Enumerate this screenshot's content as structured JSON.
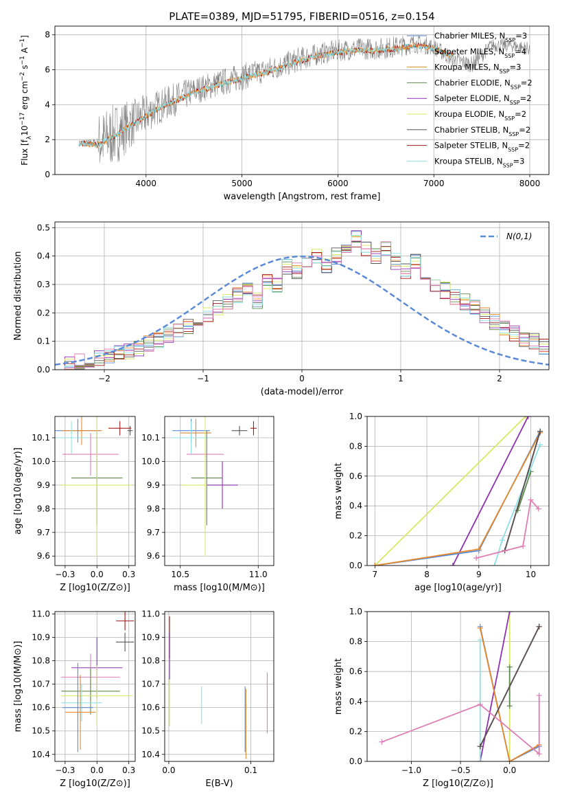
{
  "figure_title": "PLATE=0389, MJD=51795, FIBERID=0516, z=0.154",
  "colors": {
    "Chabrier MILES": "#5a8ad6",
    "Salpeter MILES": "#d9d9d9",
    "Kroupa MILES": "#e6892b",
    "Chabrier ELODIE": "#5e8a4c",
    "Salpeter ELODIE": "#8e2fb0",
    "Kroupa ELODIE": "#d8e860",
    "Chabrier STELIB": "#555555",
    "Salpeter STELIB": "#a01818",
    "Kroupa STELIB": "#8fe0e8",
    "pink": "#e07cb4",
    "data": "#808080",
    "normal_fit": "#5a8ad6"
  },
  "chart_data": [
    {
      "id": "spectrum",
      "type": "line",
      "xlabel": "wavelength [Angstrom, rest frame]",
      "ylabel_parts": [
        "Flux [f",
        "λ",
        "10",
        "−17",
        " erg cm",
        "−2",
        " s",
        "−1",
        " A",
        "−1",
        "]"
      ],
      "xlim": [
        3050,
        8200
      ],
      "ylim": [
        0,
        8.5
      ],
      "xticks": [
        4000,
        5000,
        6000,
        7000,
        8000
      ],
      "yticks": [
        0,
        2,
        4,
        6,
        8
      ],
      "legend_position": "top-right",
      "legend": [
        {
          "label": "Chabrier MILES, N",
          "sub": "SSP",
          "tail": "=3"
        },
        {
          "label": "Salpeter MILES, N",
          "sub": "SSP",
          "tail": "=4"
        },
        {
          "label": "Kroupa MILES, N",
          "sub": "SSP",
          "tail": "=3"
        },
        {
          "label": "Chabrier ELODIE, N",
          "sub": "SSP",
          "tail": "=2"
        },
        {
          "label": "Salpeter ELODIE, N",
          "sub": "SSP",
          "tail": "=2"
        },
        {
          "label": "Kroupa ELODIE, N",
          "sub": "SSP",
          "tail": "=2"
        },
        {
          "label": "Chabrier STELIB, N",
          "sub": "SSP",
          "tail": "=2"
        },
        {
          "label": "Salpeter STELIB, N",
          "sub": "SSP",
          "tail": "=2"
        },
        {
          "label": "Kroupa STELIB, N",
          "sub": "SSP",
          "tail": "=3"
        }
      ],
      "data_series": {
        "x": [
          3300,
          3500,
          3700,
          3900,
          4100,
          4300,
          4500,
          4800,
          5000,
          5200,
          5400,
          5600,
          5800,
          6000,
          6200,
          6400,
          6600,
          6800,
          7000,
          7200,
          7400,
          7600,
          7800,
          8000
        ],
        "y": [
          1.9,
          1.8,
          2.4,
          3.1,
          3.8,
          4.3,
          4.8,
          5.3,
          5.6,
          5.9,
          6.2,
          6.6,
          6.9,
          7.1,
          7.2,
          7.2,
          7.3,
          7.5,
          7.3,
          6.6,
          6.3,
          7.4,
          7.4,
          7.2
        ],
        "noise": [
          0,
          2.2,
          2.2,
          1.6,
          1.3,
          1.2,
          1.0,
          1.0,
          1.0,
          0.9,
          0.9,
          0.9,
          0.8,
          0.8,
          0.8,
          0.8,
          0.8,
          0.7,
          0.6,
          0.6,
          0.6,
          0.5,
          0.5,
          0.5
        ]
      },
      "model_series": {
        "x": [
          3300,
          3500,
          3700,
          3900,
          4100,
          4300,
          4500,
          4800,
          5000,
          5200,
          5400,
          5600,
          5800,
          6000,
          6200,
          6400,
          6600,
          6800,
          7000,
          7200
        ],
        "y": [
          1.8,
          1.7,
          2.3,
          3.0,
          3.7,
          4.2,
          4.7,
          5.2,
          5.5,
          5.8,
          6.1,
          6.5,
          6.8,
          7.0,
          7.1,
          7.1,
          7.2,
          7.4,
          7.2,
          6.8
        ]
      }
    },
    {
      "id": "residuals",
      "type": "histogram",
      "xlabel": "(data-model)/error",
      "ylabel": "Normed distribution",
      "xlim": [
        -2.5,
        2.5
      ],
      "ylim": [
        0,
        0.52
      ],
      "xticks": [
        -2,
        -1,
        0,
        1,
        2
      ],
      "yticks": [
        0.0,
        0.1,
        0.2,
        0.3,
        0.4,
        0.5
      ],
      "legend_position": "top-right",
      "normal_label": "N(0,1)",
      "bin_width": 0.1,
      "reference_series": [
        0.018,
        0.022,
        0.027,
        0.033,
        0.04,
        0.047,
        0.056,
        0.066,
        0.078,
        0.09,
        0.104,
        0.119,
        0.136,
        0.154,
        0.172,
        0.194,
        0.216,
        0.24,
        0.264,
        0.29,
        0.242,
        0.315,
        0.3,
        0.36,
        0.35,
        0.38,
        0.4,
        0.37,
        0.4,
        0.42,
        0.46,
        0.42,
        0.4,
        0.43,
        0.38,
        0.35,
        0.38,
        0.33,
        0.3,
        0.28,
        0.255,
        0.24,
        0.215,
        0.19,
        0.17,
        0.15,
        0.13,
        0.11,
        0.098,
        0.08
      ]
    },
    {
      "id": "age-vs-Z",
      "type": "scatter",
      "xlabel": "Z [log10(Z/Z⊙)]",
      "ylabel": "age  [log10(age/yr)]",
      "xlim": [
        -0.33,
        0.3
      ],
      "ylim": [
        9.56,
        10.19
      ],
      "xticks": [
        -0.25,
        0.0,
        0.25
      ],
      "yticks": [
        9.6,
        9.7,
        9.8,
        9.9,
        10.0,
        10.1
      ],
      "points": [
        {
          "c": "Chabrier MILES",
          "x": -0.15,
          "y": 10.13,
          "xerr": 0.18,
          "yerr": 0.05
        },
        {
          "c": "Kroupa MILES",
          "x": -0.12,
          "y": 10.13,
          "xerr": 0.16,
          "yerr": 0.06
        },
        {
          "c": "Kroupa STELIB",
          "x": -0.2,
          "y": 10.1,
          "xerr": 0.12,
          "yerr": 0.07
        },
        {
          "c": "pink",
          "x": -0.05,
          "y": 10.03,
          "xerr": 0.22,
          "yerr": 0.09
        },
        {
          "c": "Chabrier ELODIE",
          "x": 0.0,
          "y": 9.93,
          "xerr": 0.2,
          "yerr": 0.2
        },
        {
          "c": "Kroupa ELODIE",
          "x": 0.0,
          "y": 9.9,
          "xerr": 0.28,
          "yerr": 0.3
        },
        {
          "c": "Salpeter STELIB",
          "x": 0.18,
          "y": 10.14,
          "xerr": 0.09,
          "yerr": 0.03
        },
        {
          "c": "Chabrier STELIB",
          "x": 0.26,
          "y": 10.13,
          "xerr": 0.02,
          "yerr": 0.02
        }
      ]
    },
    {
      "id": "age-vs-mass",
      "type": "scatter",
      "xlabel": "mass [log10(M/M⊙)]",
      "ylabel": "",
      "xlim": [
        10.4,
        11.1
      ],
      "ylim": [
        9.56,
        10.19
      ],
      "xticks": [
        10.5,
        11.0
      ],
      "yticks": [
        9.6,
        9.7,
        9.8,
        9.9,
        10.0,
        10.1
      ],
      "points": [
        {
          "c": "Chabrier MILES",
          "x": 10.57,
          "y": 10.13,
          "xerr": 0.12,
          "yerr": 0.05
        },
        {
          "c": "Kroupa MILES",
          "x": 10.6,
          "y": 10.12,
          "xerr": 0.1,
          "yerr": 0.06
        },
        {
          "c": "Kroupa STELIB",
          "x": 10.57,
          "y": 10.1,
          "xerr": 0.12,
          "yerr": 0.07
        },
        {
          "c": "pink",
          "x": 10.66,
          "y": 10.03,
          "xerr": 0.12,
          "yerr": 0.09
        },
        {
          "c": "Chabrier ELODIE",
          "x": 10.67,
          "y": 9.93,
          "xerr": 0.1,
          "yerr": 0.2
        },
        {
          "c": "Kroupa ELODIE",
          "x": 10.66,
          "y": 9.9,
          "xerr": 0.15,
          "yerr": 0.3
        },
        {
          "c": "Salpeter ELODIE",
          "x": 10.77,
          "y": 9.9,
          "xerr": 0.1,
          "yerr": 0.1
        },
        {
          "c": "Salpeter STELIB",
          "x": 10.97,
          "y": 10.14,
          "xerr": 0.02,
          "yerr": 0.03
        },
        {
          "c": "Chabrier STELIB",
          "x": 10.88,
          "y": 10.13,
          "xerr": 0.05,
          "yerr": 0.02
        }
      ]
    },
    {
      "id": "weight-vs-age",
      "type": "line",
      "xlabel": "age  [log10(age/yr)]",
      "ylabel": "mass weight",
      "xlim": [
        6.85,
        10.35
      ],
      "ylim": [
        0,
        1
      ],
      "xticks": [
        7,
        8,
        9,
        10
      ],
      "yticks": [
        0.0,
        0.2,
        0.4,
        0.6,
        0.8,
        1.0
      ],
      "series": [
        {
          "c": "Kroupa ELODIE",
          "x": [
            7.0,
            9.9
          ],
          "y": [
            0.0,
            1.0
          ]
        },
        {
          "c": "Salpeter ELODIE",
          "x": [
            8.5,
            9.95
          ],
          "y": [
            0.0,
            1.0
          ]
        },
        {
          "c": "Chabrier MILES",
          "x": [
            7.0,
            9.0,
            10.18
          ],
          "y": [
            0.0,
            0.1,
            0.9
          ]
        },
        {
          "c": "Kroupa MILES",
          "x": [
            7.0,
            9.0,
            10.18
          ],
          "y": [
            0.0,
            0.11,
            0.89
          ]
        },
        {
          "c": "Chabrier ELODIE",
          "x": [
            9.75,
            10.0
          ],
          "y": [
            0.37,
            0.63
          ]
        },
        {
          "c": "Kroupa STELIB",
          "x": [
            9.3,
            9.45,
            10.18
          ],
          "y": [
            0.0,
            0.17,
            0.81
          ]
        },
        {
          "c": "Salpeter STELIB",
          "x": [
            9.5,
            10.18
          ],
          "y": [
            0.1,
            0.9
          ]
        },
        {
          "c": "Chabrier STELIB",
          "x": [
            9.5,
            10.18
          ],
          "y": [
            0.1,
            0.9
          ]
        },
        {
          "c": "pink",
          "x": [
            8.95,
            9.85,
            10.0,
            10.15
          ],
          "y": [
            0.05,
            0.13,
            0.44,
            0.38
          ]
        }
      ]
    },
    {
      "id": "mass-vs-Z",
      "type": "scatter",
      "xlabel": "Z [log10(Z/Z⊙)]",
      "ylabel": "mass [log10(M/M⊙)]",
      "xlim": [
        -0.33,
        0.3
      ],
      "ylim": [
        10.37,
        11.01
      ],
      "xticks": [
        -0.25,
        0.0,
        0.25
      ],
      "yticks": [
        10.4,
        10.5,
        10.6,
        10.7,
        10.8,
        10.9,
        11.0
      ],
      "points": [
        {
          "c": "Salpeter STELIB",
          "x": 0.22,
          "y": 10.97,
          "xerr": 0.07,
          "yerr": 0.04
        },
        {
          "c": "Chabrier STELIB",
          "x": 0.22,
          "y": 10.88,
          "xerr": 0.07,
          "yerr": 0.04
        },
        {
          "c": "Salpeter ELODIE",
          "x": 0.0,
          "y": 10.77,
          "xerr": 0.2,
          "yerr": 0.13
        },
        {
          "c": "pink",
          "x": -0.05,
          "y": 10.73,
          "xerr": 0.23,
          "yerr": 0.1
        },
        {
          "c": "Chabrier ELODIE",
          "x": -0.05,
          "y": 10.67,
          "xerr": 0.23,
          "yerr": 0.1
        },
        {
          "c": "Kroupa ELODIE",
          "x": 0.0,
          "y": 10.65,
          "xerr": 0.28,
          "yerr": 0.13
        },
        {
          "c": "Kroupa STELIB",
          "x": -0.12,
          "y": 10.62,
          "xerr": 0.16,
          "yerr": 0.08
        },
        {
          "c": "Chabrier MILES",
          "x": -0.15,
          "y": 10.6,
          "xerr": 0.12,
          "yerr": 0.19
        },
        {
          "c": "Kroupa MILES",
          "x": -0.13,
          "y": 10.58,
          "xerr": 0.12,
          "yerr": 0.16
        }
      ]
    },
    {
      "id": "mass-vs-EBV",
      "type": "scatter",
      "xlabel": "E(B-V)",
      "ylabel": "",
      "xlim": [
        -0.005,
        0.128
      ],
      "ylim": [
        10.37,
        11.01
      ],
      "xticks": [
        0.0,
        0.1
      ],
      "yticks": [
        10.4,
        10.5,
        10.6,
        10.7,
        10.8,
        10.9,
        11.0
      ],
      "points": [
        {
          "c": "Salpeter STELIB",
          "x": 0.001,
          "y": 10.9,
          "xerr": 0,
          "yerr": 0.09
        },
        {
          "c": "Salpeter ELODIE",
          "x": 0.001,
          "y": 10.82,
          "xerr": 0,
          "yerr": 0.1
        },
        {
          "c": "Kroupa ELODIE",
          "x": 0.001,
          "y": 10.62,
          "xerr": 0,
          "yerr": 0.1
        },
        {
          "c": "Kroupa STELIB",
          "x": 0.04,
          "y": 10.61,
          "xerr": 0,
          "yerr": 0.08
        },
        {
          "c": "Chabrier MILES",
          "x": 0.093,
          "y": 10.55,
          "xerr": 0,
          "yerr": 0.14
        },
        {
          "c": "Kroupa MILES",
          "x": 0.094,
          "y": 10.53,
          "xerr": 0,
          "yerr": 0.15
        },
        {
          "c": "pink",
          "x": 0.12,
          "y": 10.62,
          "xerr": 0,
          "yerr": 0.13
        }
      ]
    },
    {
      "id": "weight-vs-Z",
      "type": "line",
      "xlabel": "Z [log10(Z/Z⊙)]",
      "ylabel": "mass weight",
      "xlim": [
        -1.45,
        0.4
      ],
      "ylim": [
        0,
        1
      ],
      "xticks": [
        -1.0,
        -0.5,
        0.0
      ],
      "yticks": [
        0.0,
        0.2,
        0.4,
        0.6,
        0.8,
        1.0
      ],
      "series": [
        {
          "c": "Kroupa ELODIE",
          "x": [
            0.0,
            0.0
          ],
          "y": [
            0.0,
            1.0
          ]
        },
        {
          "c": "Salpeter ELODIE",
          "x": [
            -0.3,
            0.0
          ],
          "y": [
            0.0,
            1.0
          ]
        },
        {
          "c": "Chabrier ELODIE",
          "x": [
            0.0,
            0.0
          ],
          "y": [
            0.37,
            0.63
          ]
        },
        {
          "c": "Kroupa STELIB",
          "x": [
            -0.3,
            -0.3
          ],
          "y": [
            0.0,
            0.81
          ]
        },
        {
          "c": "Chabrier MILES",
          "x": [
            -0.3,
            0.0,
            0.3
          ],
          "y": [
            0.9,
            0.0,
            0.1
          ]
        },
        {
          "c": "Kroupa MILES",
          "x": [
            -0.3,
            0.0,
            0.3
          ],
          "y": [
            0.89,
            0.0,
            0.11
          ]
        },
        {
          "c": "Salpeter STELIB",
          "x": [
            -0.3,
            0.3
          ],
          "y": [
            0.1,
            0.9
          ]
        },
        {
          "c": "Chabrier STELIB",
          "x": [
            -0.3,
            0.3
          ],
          "y": [
            0.1,
            0.9
          ]
        },
        {
          "c": "pink",
          "x": [
            -1.3,
            -0.3,
            0.3,
            0.3
          ],
          "y": [
            0.13,
            0.38,
            0.05,
            0.44
          ]
        }
      ]
    }
  ]
}
